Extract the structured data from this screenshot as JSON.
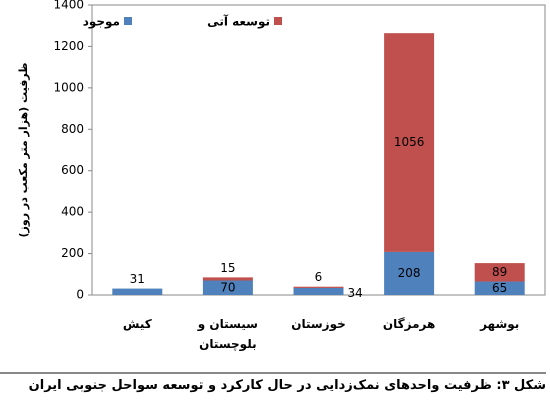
{
  "chart_data": {
    "type": "stacked_bar",
    "title": "شکل ۳: ظرفیت واحدهای نمک‌زدایی در حال کارکرد و توسعه سواحل جنوبی ایران",
    "y_label": "ظرفیت (هزار متر مکعب در روز)",
    "categories": [
      "کیش",
      "سیستان و بلوچستان",
      "خوزستان",
      "هرمزگان",
      "بوشهر"
    ],
    "series": [
      {
        "name": "موجود",
        "color": "#4f81bd",
        "values": [
          31,
          70,
          34,
          208,
          65
        ]
      },
      {
        "name": "توسعه آتی",
        "color": "#c0504d",
        "values": [
          null,
          15,
          6,
          1056,
          89
        ]
      }
    ],
    "ylim": [
      0,
      1400
    ],
    "yticks": [
      0,
      200,
      400,
      600,
      800,
      1000,
      1200,
      1400
    ],
    "grid": false
  }
}
